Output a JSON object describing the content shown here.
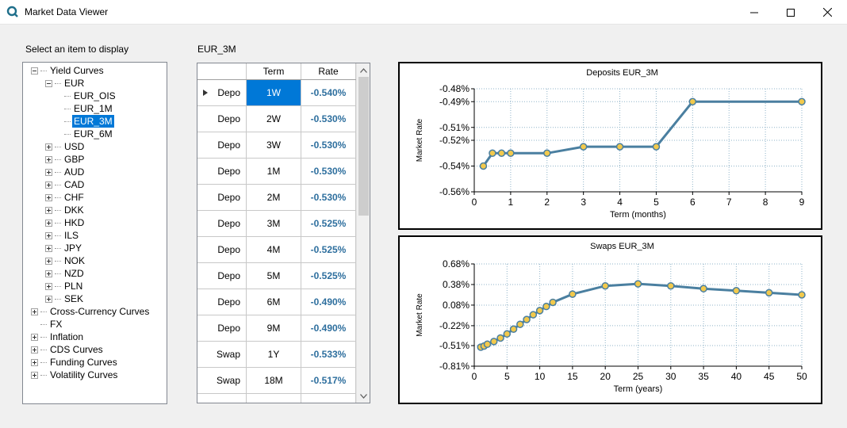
{
  "window": {
    "title": "Market Data Viewer",
    "icon": "app-logo-icon",
    "controls": [
      "minimize-icon",
      "maximize-icon",
      "close-icon"
    ]
  },
  "left_panel": {
    "label": "Select an item to display",
    "tree": [
      {
        "label": "Yield Curves",
        "depth": 0,
        "expander": "minus"
      },
      {
        "label": "EUR",
        "depth": 1,
        "expander": "minus"
      },
      {
        "label": "EUR_OIS",
        "depth": 2,
        "expander": "none"
      },
      {
        "label": "EUR_1M",
        "depth": 2,
        "expander": "none"
      },
      {
        "label": "EUR_3M",
        "depth": 2,
        "expander": "none",
        "selected": true
      },
      {
        "label": "EUR_6M",
        "depth": 2,
        "expander": "none"
      },
      {
        "label": "USD",
        "depth": 1,
        "expander": "plus"
      },
      {
        "label": "GBP",
        "depth": 1,
        "expander": "plus"
      },
      {
        "label": "AUD",
        "depth": 1,
        "expander": "plus"
      },
      {
        "label": "CAD",
        "depth": 1,
        "expander": "plus"
      },
      {
        "label": "CHF",
        "depth": 1,
        "expander": "plus"
      },
      {
        "label": "DKK",
        "depth": 1,
        "expander": "plus"
      },
      {
        "label": "HKD",
        "depth": 1,
        "expander": "plus"
      },
      {
        "label": "ILS",
        "depth": 1,
        "expander": "plus"
      },
      {
        "label": "JPY",
        "depth": 1,
        "expander": "plus"
      },
      {
        "label": "NOK",
        "depth": 1,
        "expander": "plus"
      },
      {
        "label": "NZD",
        "depth": 1,
        "expander": "plus"
      },
      {
        "label": "PLN",
        "depth": 1,
        "expander": "plus"
      },
      {
        "label": "SEK",
        "depth": 1,
        "expander": "plus"
      },
      {
        "label": "Cross-Currency Curves",
        "depth": 0,
        "expander": "plus"
      },
      {
        "label": "FX",
        "depth": 0,
        "expander": "none"
      },
      {
        "label": "Inflation",
        "depth": 0,
        "expander": "plus"
      },
      {
        "label": "CDS Curves",
        "depth": 0,
        "expander": "plus"
      },
      {
        "label": "Funding Curves",
        "depth": 0,
        "expander": "plus"
      },
      {
        "label": "Volatility Curves",
        "depth": 0,
        "expander": "plus"
      }
    ]
  },
  "grid": {
    "caption": "EUR_3M",
    "columns": [
      "",
      "Term",
      "Rate"
    ],
    "rows": [
      {
        "type": "Depo",
        "term": "1W",
        "rate": "-0.540%",
        "current": true
      },
      {
        "type": "Depo",
        "term": "2W",
        "rate": "-0.530%"
      },
      {
        "type": "Depo",
        "term": "3W",
        "rate": "-0.530%"
      },
      {
        "type": "Depo",
        "term": "1M",
        "rate": "-0.530%"
      },
      {
        "type": "Depo",
        "term": "2M",
        "rate": "-0.530%"
      },
      {
        "type": "Depo",
        "term": "3M",
        "rate": "-0.525%"
      },
      {
        "type": "Depo",
        "term": "4M",
        "rate": "-0.525%"
      },
      {
        "type": "Depo",
        "term": "5M",
        "rate": "-0.525%"
      },
      {
        "type": "Depo",
        "term": "6M",
        "rate": "-0.490%"
      },
      {
        "type": "Depo",
        "term": "9M",
        "rate": "-0.490%"
      },
      {
        "type": "Swap",
        "term": "1Y",
        "rate": "-0.533%"
      },
      {
        "type": "Swap",
        "term": "18M",
        "rate": "-0.517%"
      },
      {
        "type": "",
        "term": "",
        "rate": ""
      }
    ]
  },
  "colors": {
    "accent": "#0078d7",
    "rate_text": "#2e6f9e",
    "series_line": "#4a7fa0",
    "marker_fill": "#f2c94c",
    "grid_line": "#8fb3c8"
  },
  "chart_data": [
    {
      "type": "line",
      "title": "Deposits EUR_3M",
      "xlabel": "Term (months)",
      "ylabel": "Market Rate",
      "xlim": [
        0,
        9
      ],
      "ylim": [
        -0.56,
        -0.48
      ],
      "xticks": [
        0,
        1,
        2,
        3,
        4,
        5,
        6,
        7,
        8,
        9
      ],
      "yticks": [
        -0.56,
        -0.54,
        -0.52,
        -0.51,
        -0.49,
        -0.48
      ],
      "ytick_labels": [
        "-0.56%",
        "-0.54%",
        "-0.52%",
        "-0.51%",
        "-0.49%",
        "-0.48%"
      ],
      "grid": true,
      "x": [
        0.25,
        0.5,
        0.75,
        1,
        2,
        3,
        4,
        5,
        6,
        9
      ],
      "y": [
        -0.54,
        -0.53,
        -0.53,
        -0.53,
        -0.53,
        -0.525,
        -0.525,
        -0.525,
        -0.49,
        -0.49
      ]
    },
    {
      "type": "line",
      "title": "Swaps EUR_3M",
      "xlabel": "Term (years)",
      "ylabel": "Market Rate",
      "xlim": [
        0,
        50
      ],
      "ylim": [
        -0.81,
        0.68
      ],
      "xticks": [
        0,
        5,
        10,
        15,
        20,
        25,
        30,
        35,
        40,
        45,
        50
      ],
      "yticks": [
        -0.81,
        -0.51,
        -0.22,
        0.08,
        0.38,
        0.68
      ],
      "ytick_labels": [
        "-0.81%",
        "-0.51%",
        "-0.22%",
        "0.08%",
        "0.38%",
        "0.68%"
      ],
      "grid": true,
      "x": [
        1,
        1.5,
        2,
        3,
        4,
        5,
        6,
        7,
        8,
        9,
        10,
        11,
        12,
        15,
        20,
        25,
        30,
        35,
        40,
        45,
        50
      ],
      "y": [
        -0.533,
        -0.517,
        -0.49,
        -0.45,
        -0.4,
        -0.34,
        -0.27,
        -0.2,
        -0.13,
        -0.06,
        0.0,
        0.06,
        0.12,
        0.24,
        0.36,
        0.39,
        0.36,
        0.32,
        0.29,
        0.26,
        0.23
      ]
    }
  ]
}
